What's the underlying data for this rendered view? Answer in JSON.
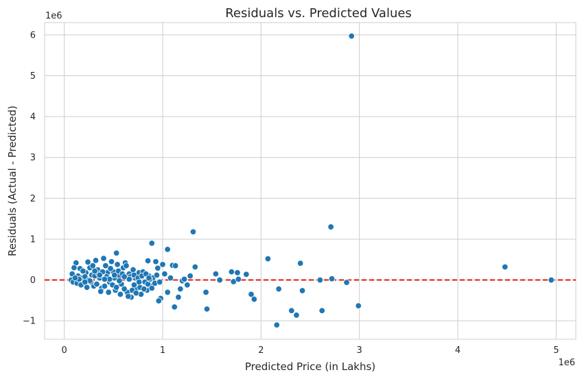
{
  "chart_data": {
    "type": "scatter",
    "title": "Residuals vs. Predicted Values",
    "xlabel": "Predicted Price (in Lakhs)",
    "ylabel": "Residuals (Actual - Predicted)",
    "x_offset_label": "1e6",
    "y_offset_label": "1e6",
    "xlim": [
      -0.2,
      5.2
    ],
    "ylim": [
      -1.45,
      6.3
    ],
    "x_ticks": [
      0,
      1,
      2,
      3,
      4,
      5
    ],
    "x_tick_labels": [
      "0",
      "1",
      "2",
      "3",
      "4",
      "5"
    ],
    "y_ticks": [
      -1,
      0,
      1,
      2,
      3,
      4,
      5,
      6
    ],
    "y_tick_labels": [
      "−1",
      "0",
      "1",
      "2",
      "3",
      "4",
      "5",
      "6"
    ],
    "grid": true,
    "point_color": "#1f77b4",
    "reference_line": {
      "y": 0,
      "color": "#e8130e",
      "style": "dashed"
    },
    "points": [
      [
        2.92,
        5.97
      ],
      [
        2.71,
        1.3
      ],
      [
        1.31,
        1.18
      ],
      [
        0.89,
        0.9
      ],
      [
        1.05,
        0.75
      ],
      [
        0.53,
        0.66
      ],
      [
        2.07,
        0.52
      ],
      [
        2.4,
        0.41
      ],
      [
        4.48,
        0.32
      ],
      [
        1.33,
        0.32
      ],
      [
        1.54,
        0.15
      ],
      [
        1.7,
        0.2
      ],
      [
        1.76,
        0.18
      ],
      [
        1.85,
        0.14
      ],
      [
        1.58,
        0.0
      ],
      [
        1.72,
        -0.04
      ],
      [
        1.77,
        0.02
      ],
      [
        2.6,
        0.0
      ],
      [
        2.72,
        0.03
      ],
      [
        2.87,
        -0.06
      ],
      [
        4.95,
        0.0
      ],
      [
        1.44,
        -0.3
      ],
      [
        1.9,
        -0.35
      ],
      [
        1.93,
        -0.47
      ],
      [
        2.18,
        -0.22
      ],
      [
        2.42,
        -0.26
      ],
      [
        1.45,
        -0.71
      ],
      [
        2.31,
        -0.75
      ],
      [
        2.36,
        -0.86
      ],
      [
        2.62,
        -0.75
      ],
      [
        2.99,
        -0.63
      ],
      [
        2.16,
        -1.1
      ],
      [
        1.12,
        -0.66
      ],
      [
        1.16,
        -0.42
      ],
      [
        1.0,
        0.38
      ],
      [
        0.95,
        0.29
      ],
      [
        0.85,
        0.47
      ],
      [
        0.93,
        0.45
      ],
      [
        1.02,
        0.15
      ],
      [
        1.1,
        0.36
      ],
      [
        1.13,
        0.35
      ],
      [
        1.2,
        -0.02
      ],
      [
        1.22,
        0.02
      ],
      [
        1.28,
        0.1
      ],
      [
        1.25,
        -0.12
      ],
      [
        1.18,
        -0.22
      ],
      [
        1.05,
        -0.3
      ],
      [
        0.98,
        -0.45
      ],
      [
        0.96,
        -0.51
      ],
      [
        1.08,
        0.05
      ],
      [
        0.12,
        0.42
      ],
      [
        0.1,
        0.3
      ],
      [
        0.08,
        0.15
      ],
      [
        0.07,
        0.0
      ],
      [
        0.09,
        -0.05
      ],
      [
        0.14,
        0.1
      ],
      [
        0.16,
        0.28
      ],
      [
        0.18,
        0.05
      ],
      [
        0.2,
        -0.1
      ],
      [
        0.22,
        0.18
      ],
      [
        0.24,
        0.44
      ],
      [
        0.26,
        0.3
      ],
      [
        0.28,
        0.12
      ],
      [
        0.3,
        -0.15
      ],
      [
        0.32,
        0.48
      ],
      [
        0.34,
        0.25
      ],
      [
        0.36,
        0.05
      ],
      [
        0.38,
        -0.2
      ],
      [
        0.4,
        0.53
      ],
      [
        0.42,
        0.35
      ],
      [
        0.44,
        0.18
      ],
      [
        0.46,
        -0.05
      ],
      [
        0.48,
        0.45
      ],
      [
        0.5,
        0.2
      ],
      [
        0.52,
        -0.25
      ],
      [
        0.54,
        0.38
      ],
      [
        0.56,
        0.1
      ],
      [
        0.58,
        -0.1
      ],
      [
        0.6,
        0.3
      ],
      [
        0.62,
        0.42
      ],
      [
        0.64,
        -0.3
      ],
      [
        0.66,
        0.15
      ],
      [
        0.68,
        -0.42
      ],
      [
        0.7,
        0.25
      ],
      [
        0.72,
        0.05
      ],
      [
        0.74,
        -0.2
      ],
      [
        0.76,
        0.18
      ],
      [
        0.78,
        -0.35
      ],
      [
        0.8,
        0.2
      ],
      [
        0.82,
        -0.05
      ],
      [
        0.84,
        -0.25
      ],
      [
        0.86,
        0.1
      ],
      [
        0.88,
        -0.15
      ],
      [
        0.9,
        0.05
      ],
      [
        0.92,
        -0.08
      ],
      [
        0.94,
        0.12
      ],
      [
        0.97,
        -0.05
      ],
      [
        0.13,
        -0.08
      ],
      [
        0.17,
        -0.12
      ],
      [
        0.19,
        0.22
      ],
      [
        0.21,
        0.08
      ],
      [
        0.23,
        -0.18
      ],
      [
        0.25,
        0.0
      ],
      [
        0.27,
        -0.05
      ],
      [
        0.29,
        0.35
      ],
      [
        0.31,
        0.1
      ],
      [
        0.33,
        -0.1
      ],
      [
        0.35,
        0.15
      ],
      [
        0.37,
        -0.28
      ],
      [
        0.39,
        0.2
      ],
      [
        0.41,
        -0.15
      ],
      [
        0.43,
        0.08
      ],
      [
        0.45,
        -0.3
      ],
      [
        0.47,
        0.28
      ],
      [
        0.49,
        -0.12
      ],
      [
        0.51,
        0.05
      ],
      [
        0.53,
        -0.18
      ],
      [
        0.55,
        0.22
      ],
      [
        0.57,
        -0.35
      ],
      [
        0.59,
        0.15
      ],
      [
        0.61,
        -0.22
      ],
      [
        0.63,
        0.35
      ],
      [
        0.65,
        -0.4
      ],
      [
        0.67,
        0.08
      ],
      [
        0.69,
        -0.25
      ],
      [
        0.71,
        0.12
      ],
      [
        0.73,
        -0.32
      ],
      [
        0.75,
        0.05
      ],
      [
        0.77,
        -0.18
      ],
      [
        0.79,
        0.1
      ],
      [
        0.81,
        -0.22
      ],
      [
        0.83,
        0.15
      ],
      [
        0.85,
        -0.1
      ],
      [
        0.87,
        0.02
      ],
      [
        0.89,
        -0.2
      ],
      [
        0.15,
        0.02
      ],
      [
        0.26,
        -0.02
      ],
      [
        0.36,
        0.12
      ],
      [
        0.46,
        0.02
      ],
      [
        0.56,
        -0.02
      ],
      [
        0.66,
        0.02
      ],
      [
        0.76,
        -0.05
      ],
      [
        0.86,
        0.05
      ],
      [
        0.41,
        0.02
      ],
      [
        0.51,
        0.12
      ],
      [
        0.61,
        0.08
      ],
      [
        0.71,
        -0.12
      ],
      [
        0.31,
        0.22
      ],
      [
        0.21,
        -0.05
      ],
      [
        0.11,
        0.05
      ]
    ]
  }
}
